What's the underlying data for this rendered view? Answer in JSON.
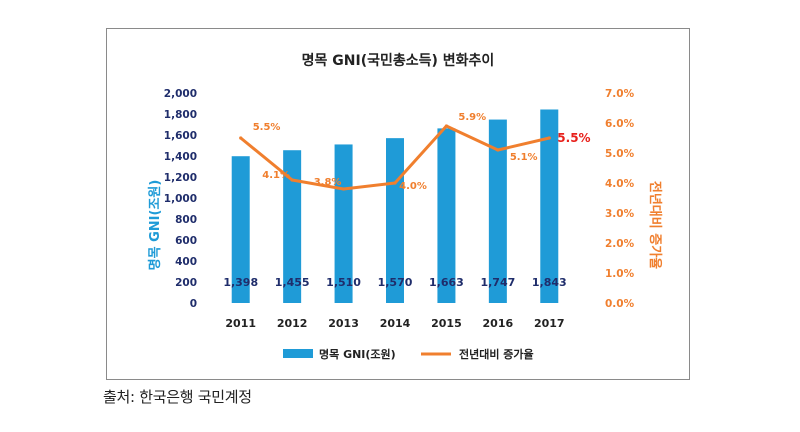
{
  "chart_data": {
    "type": "bar",
    "title": "명목 GNI(국민총소득) 변화추이",
    "categories": [
      "2011",
      "2012",
      "2013",
      "2014",
      "2015",
      "2016",
      "2017"
    ],
    "series": [
      {
        "name": "명목 GNI(조원)",
        "type": "bar",
        "axis": "left",
        "values": [
          1398,
          1455,
          1510,
          1570,
          1663,
          1747,
          1843
        ],
        "labels": [
          "1,398",
          "1,455",
          "1,510",
          "1,570",
          "1,663",
          "1,747",
          "1,843"
        ],
        "color": "#1F9BD7"
      },
      {
        "name": "전년대비 증가율",
        "type": "line",
        "axis": "right",
        "values": [
          5.5,
          4.1,
          3.8,
          4.0,
          5.9,
          5.1,
          5.5
        ],
        "labels": [
          "5.5%",
          "4.1%",
          "3.8%",
          "4.0%",
          "5.9%",
          "5.1%",
          "5.5%"
        ],
        "color": "#F07F2E",
        "highlight_last_color": "#E8211C"
      }
    ],
    "y_left": {
      "label": "명목 GNI(조원)",
      "range": [
        0,
        2000
      ],
      "ticks": [
        "0",
        "200",
        "400",
        "600",
        "800",
        "1,000",
        "1,200",
        "1,400",
        "1,600",
        "1,800",
        "2,000"
      ]
    },
    "y_right": {
      "label": "전년대비 증가율",
      "range": [
        0,
        7
      ],
      "ticks": [
        "0.0%",
        "1.0%",
        "2.0%",
        "3.0%",
        "4.0%",
        "5.0%",
        "6.0%",
        "7.0%"
      ]
    },
    "grid": false,
    "legend_position": "bottom",
    "colors": {
      "left_axis_label": "#1F9BD7",
      "right_axis_label": "#F07F2E",
      "axis_text": "#1F2D6B",
      "bar_label": "#1F2D6B"
    }
  },
  "source": "출처: 한국은행 국민계정"
}
